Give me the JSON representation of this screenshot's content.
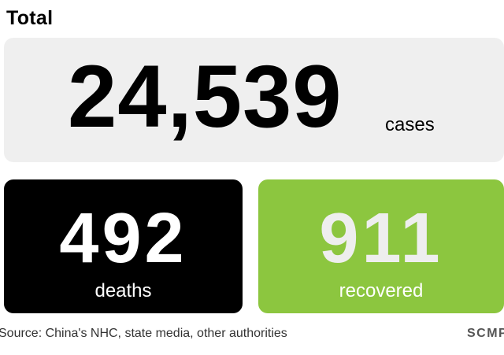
{
  "title": "Total",
  "total": {
    "value": "24,539",
    "unit": "cases"
  },
  "stats": {
    "deaths": {
      "value": "492",
      "label": "deaths"
    },
    "recovered": {
      "value": "911",
      "label": "recovered"
    }
  },
  "footer": {
    "source": "Source: China's NHC, state media, other authorities",
    "brand": "SCMP"
  },
  "colors": {
    "total_card_bg": "#efefef",
    "deaths_card_bg": "#000000",
    "recovered_card_bg": "#8cc63f",
    "text_dark": "#000000",
    "text_light": "#ffffff"
  }
}
